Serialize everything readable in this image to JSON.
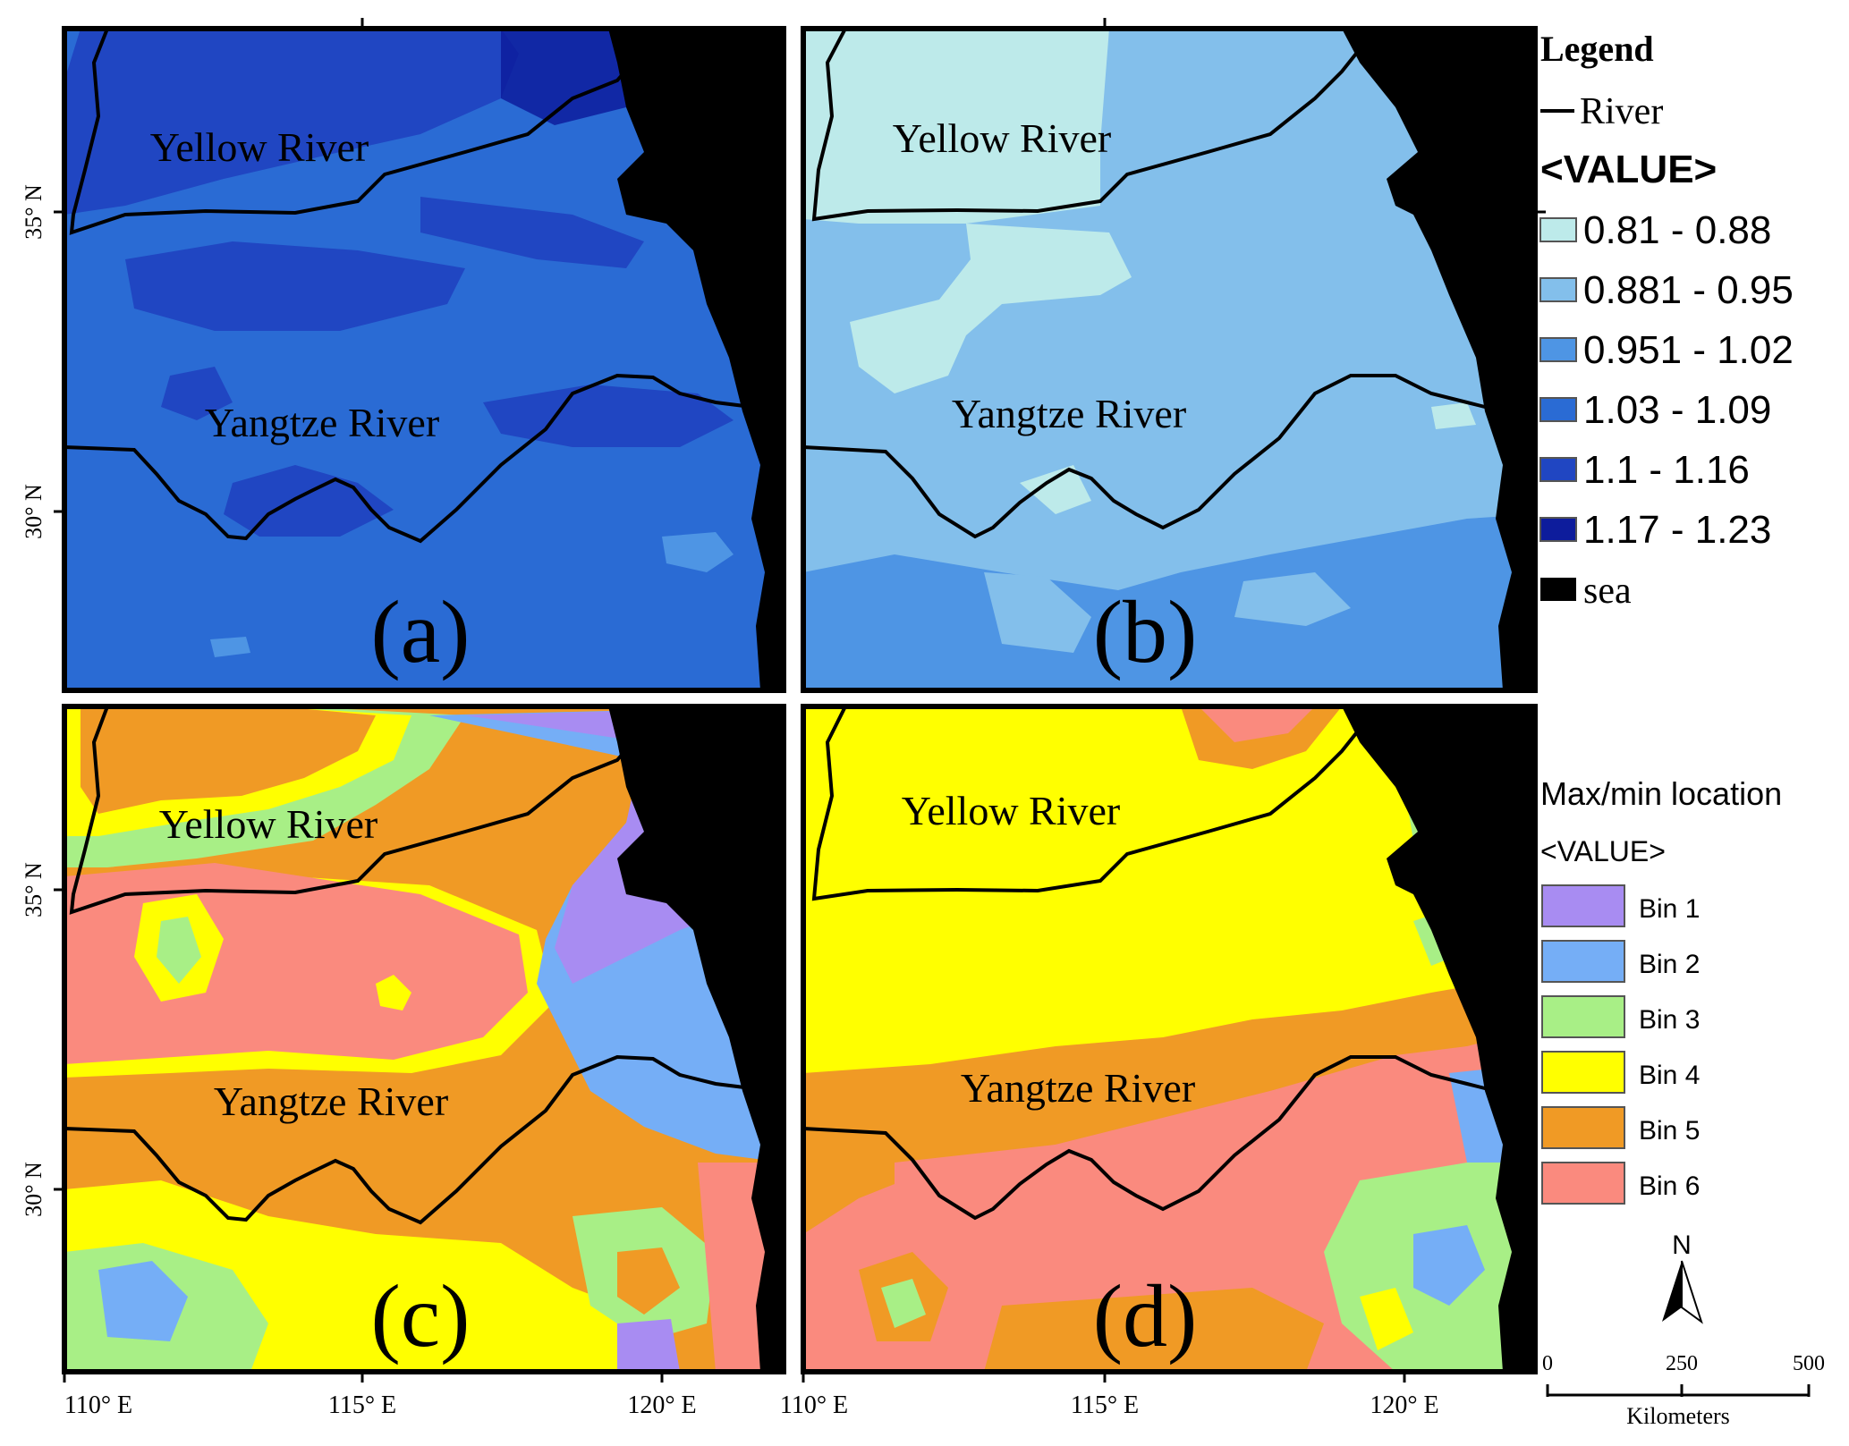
{
  "panels": [
    {
      "id": "a",
      "label": "(a)",
      "scheme": "value",
      "rivers": [
        {
          "name": "Yellow River"
        },
        {
          "name": "Yangtze River"
        }
      ]
    },
    {
      "id": "b",
      "label": "(b)",
      "scheme": "value",
      "rivers": [
        {
          "name": "Yellow River"
        },
        {
          "name": "Yangtze River"
        }
      ]
    },
    {
      "id": "c",
      "label": "(c)",
      "scheme": "bin",
      "rivers": [
        {
          "name": "Yellow River"
        },
        {
          "name": "Yangtze River"
        }
      ]
    },
    {
      "id": "d",
      "label": "(d)",
      "scheme": "bin",
      "rivers": [
        {
          "name": "Yellow River"
        },
        {
          "name": "Yangtze River"
        }
      ]
    }
  ],
  "axes": {
    "lat_ticks": [
      "35° N",
      "30° N"
    ],
    "lon_ticks": [
      "110° E",
      "115° E",
      "120° E"
    ]
  },
  "legend_top": {
    "title": "Legend",
    "river_label": "River",
    "value_title": "<VALUE>",
    "classes": [
      {
        "label": "0.81 - 0.88",
        "color": "#bdeaea"
      },
      {
        "label": "0.881 - 0.95",
        "color": "#83bfeb"
      },
      {
        "label": "0.951 - 1.02",
        "color": "#4e95e4"
      },
      {
        "label": "1.03 - 1.09",
        "color": "#2a6bd4"
      },
      {
        "label": "1.1 - 1.16",
        "color": "#2046c2"
      },
      {
        "label": "1.17 - 1.23",
        "color": "#0d1c9c"
      }
    ],
    "sea_label": "sea",
    "sea_color": "#000000"
  },
  "legend_bottom": {
    "title": "Max/min location",
    "value_title": "<VALUE>",
    "bins": [
      {
        "label": "Bin 1",
        "color": "#a88cf2"
      },
      {
        "label": "Bin 2",
        "color": "#75aef6"
      },
      {
        "label": "Bin 3",
        "color": "#a8ef86"
      },
      {
        "label": "Bin 4",
        "color": "#ffff00"
      },
      {
        "label": "Bin 5",
        "color": "#f09a25"
      },
      {
        "label": "Bin 6",
        "color": "#fa8a7e"
      }
    ]
  },
  "north_arrow": {
    "label": "N",
    "icon": "north-arrow-icon"
  },
  "scale_bar": {
    "ticks": [
      "0",
      "250",
      "500"
    ],
    "unit": "Kilometers"
  }
}
